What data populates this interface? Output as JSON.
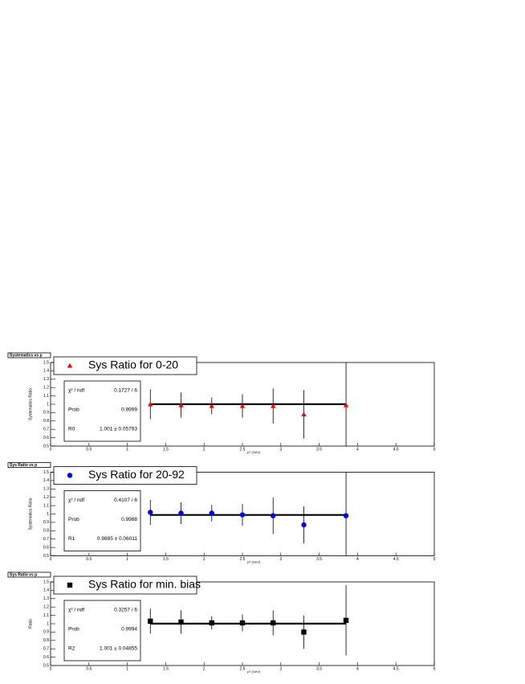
{
  "chart_data": [
    {
      "type": "errorbar",
      "title": "Systematics vs p",
      "legend": "Sys Ratio for 0-20",
      "marker": "triangle",
      "color": "#ff0000",
      "x_label": "pT (GeV)",
      "y_label": "Systematics Ratio",
      "x": [
        1.3,
        1.7,
        2.1,
        2.5,
        2.9,
        3.3,
        3.85
      ],
      "values": [
        1.0,
        0.99,
        0.98,
        0.98,
        0.98,
        0.88,
        0.99
      ],
      "errors": [
        0.18,
        0.15,
        0.1,
        0.14,
        0.21,
        0.29,
        0.6
      ],
      "fit": 1.001,
      "stats": [
        {
          "label": "χ² / ndf",
          "value": "0.1727 / 6"
        },
        {
          "label": "Prob",
          "value": "0.9999"
        },
        {
          "label": "R0",
          "value": "1.001 ± 0.05793"
        }
      ],
      "xlim": [
        0,
        5
      ],
      "xticks": [
        0,
        0.5,
        1,
        1.5,
        2,
        2.5,
        3,
        3.5,
        4,
        4.5,
        5
      ],
      "ylim": [
        0.5,
        1.5
      ],
      "yticks": [
        0.5,
        0.6,
        0.7,
        0.8,
        0.9,
        1,
        1.1,
        1.2,
        1.3,
        1.4,
        1.5
      ]
    },
    {
      "type": "errorbar",
      "title": "Sys Ratio vs p",
      "legend": "Sys Ratio for 20-92",
      "marker": "circle",
      "color": "#0000ee",
      "x_label": "pT (GeV)",
      "y_label": "Systematics Ratio",
      "x": [
        1.3,
        1.7,
        2.1,
        2.5,
        2.9,
        3.3,
        3.85
      ],
      "values": [
        1.02,
        1.01,
        1.01,
        0.99,
        0.98,
        0.87,
        0.98
      ],
      "errors": [
        0.15,
        0.13,
        0.1,
        0.13,
        0.22,
        0.22,
        0.6
      ],
      "fit": 0.9885,
      "stats": [
        {
          "label": "χ² / ndf",
          "value": "0.4107 / 6"
        },
        {
          "label": "Prob",
          "value": "0.9988"
        },
        {
          "label": "R1",
          "value": "0.9885 ± 0.06011"
        }
      ],
      "xlim": [
        0,
        5
      ],
      "xticks": [
        0,
        0.5,
        1,
        1.5,
        2,
        2.5,
        3,
        3.5,
        4,
        4.5,
        5
      ],
      "ylim": [
        0.5,
        1.5
      ],
      "yticks": [
        0.5,
        0.6,
        0.7,
        0.8,
        0.9,
        1,
        1.1,
        1.2,
        1.3,
        1.4,
        1.5
      ]
    },
    {
      "type": "errorbar",
      "title": "Sys Ratio vs p",
      "legend": "Sys Ratio for min. bias",
      "marker": "square",
      "color": "#000000",
      "x_label": "pT (GeV)",
      "y_label": "Ratio",
      "x": [
        1.3,
        1.7,
        2.1,
        2.5,
        2.9,
        3.3,
        3.85
      ],
      "values": [
        1.03,
        1.02,
        1.01,
        1.01,
        1.01,
        0.9,
        1.04
      ],
      "errors": [
        0.15,
        0.14,
        0.08,
        0.1,
        0.15,
        0.2,
        0.42
      ],
      "fit": 1.001,
      "stats": [
        {
          "label": "χ² / ndf",
          "value": "0.3257 / 6"
        },
        {
          "label": "Prob",
          "value": "0.9994"
        },
        {
          "label": "R2",
          "value": "1.001 ± 0.04855"
        }
      ],
      "xlim": [
        0,
        5
      ],
      "xticks": [
        0,
        0.5,
        1,
        1.5,
        2,
        2.5,
        3,
        3.5,
        4,
        4.5,
        5
      ],
      "ylim": [
        0.5,
        1.5
      ],
      "yticks": [
        0.5,
        0.6,
        0.7,
        0.8,
        0.9,
        1,
        1.1,
        1.2,
        1.3,
        1.4,
        1.5
      ]
    }
  ]
}
